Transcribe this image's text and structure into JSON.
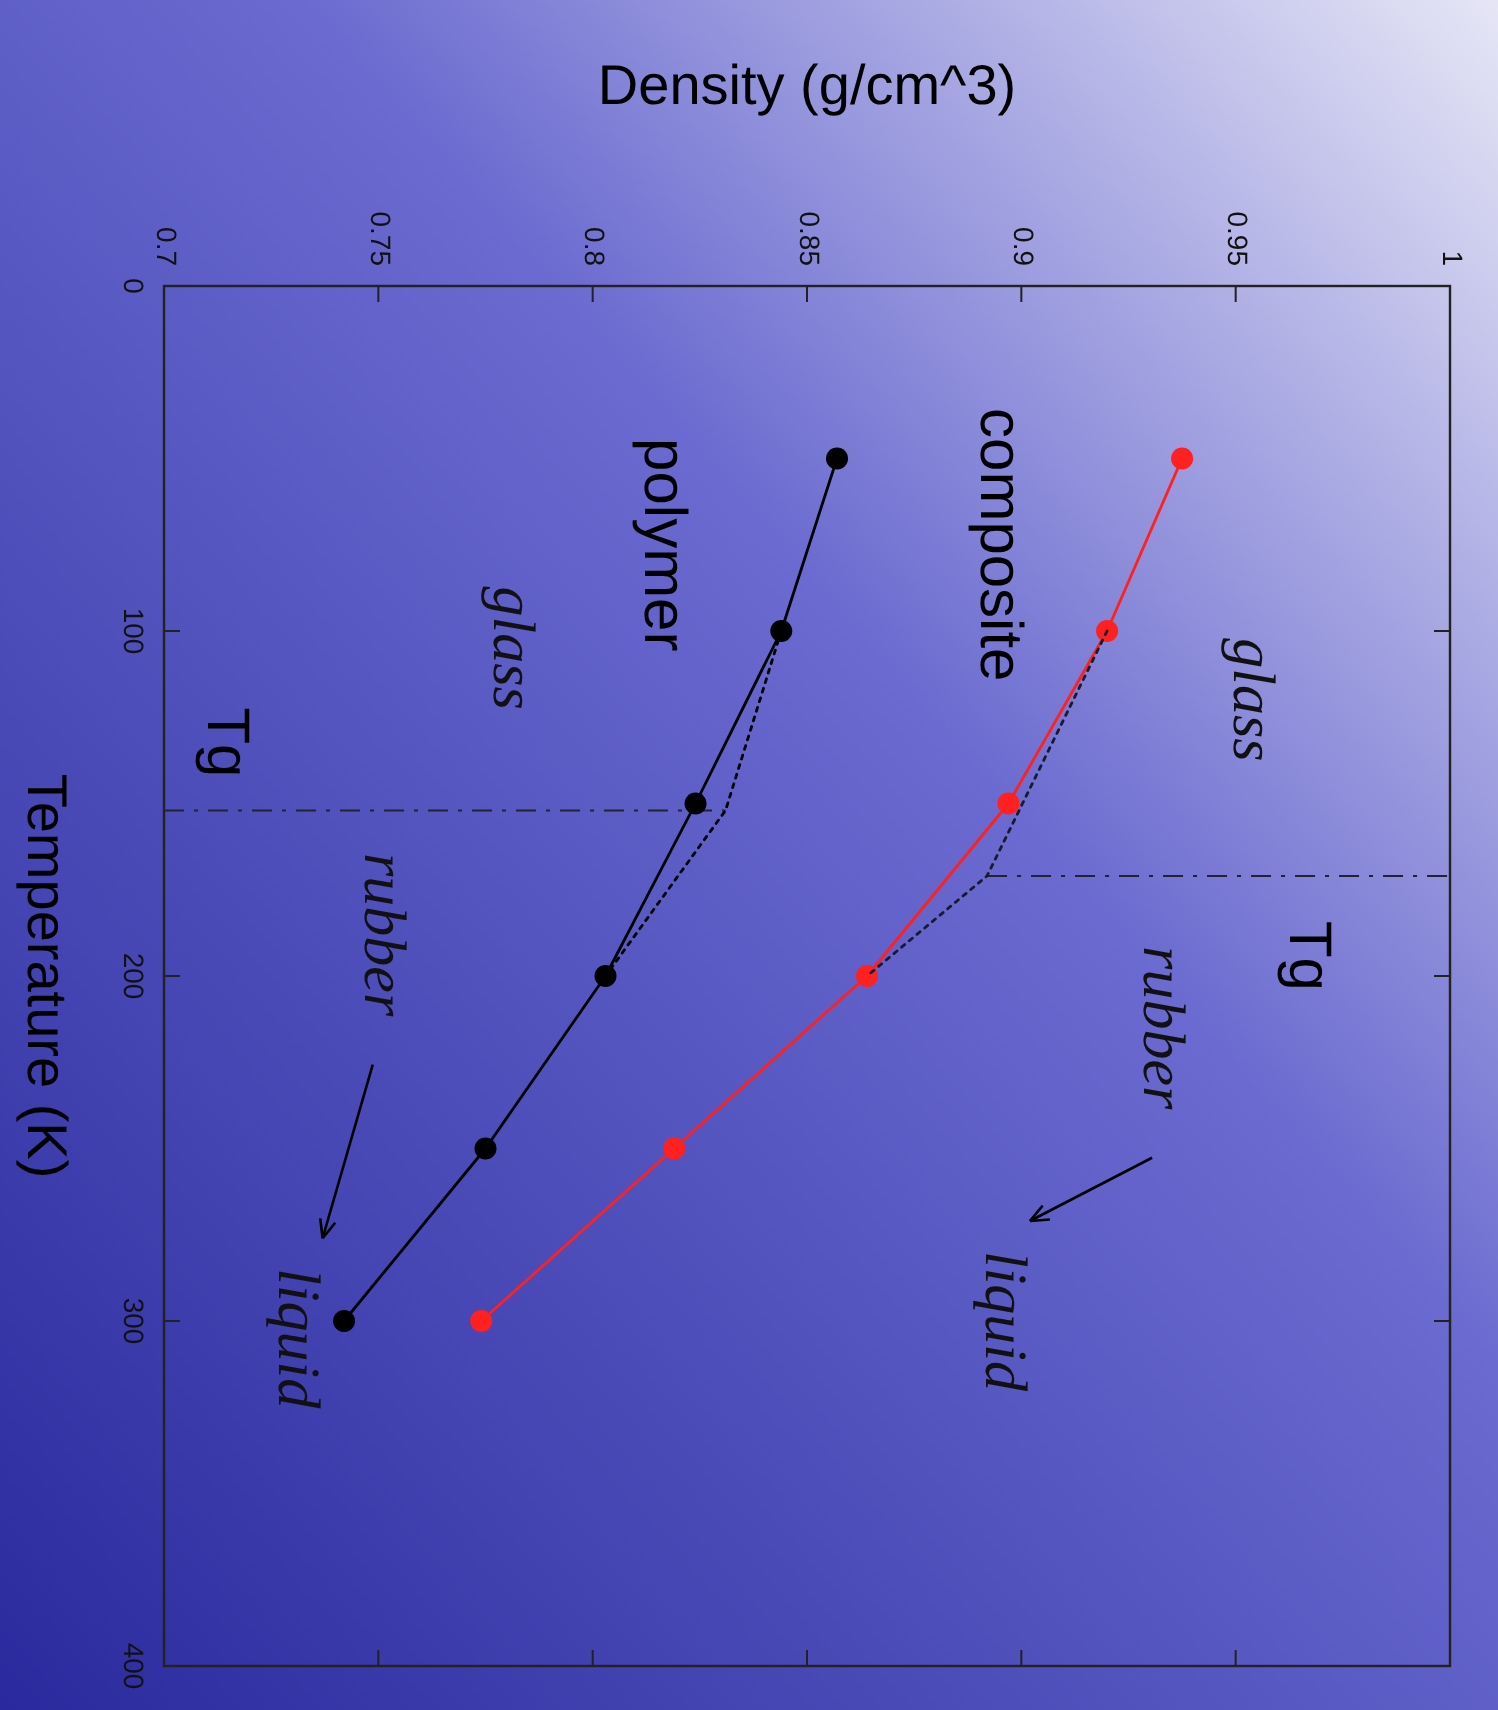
{
  "chart_data": {
    "type": "line",
    "xlabel": "Density (g/cm^3)",
    "ylabel": "Temperature (K)",
    "xlim": [
      0.7,
      1
    ],
    "xticks": [
      0.7,
      0.75,
      0.8,
      0.85,
      0.9,
      0.95,
      1
    ],
    "ylim": [
      400,
      0
    ],
    "yticks": [
      0,
      100,
      200,
      300,
      400
    ],
    "marker": "circle",
    "grid": false,
    "series": [
      {
        "name": "composite",
        "color": "#ff2020",
        "x": [
          0.9375,
          0.92,
          0.897,
          0.864,
          0.819,
          0.774
        ],
        "values": [
          50,
          100,
          150,
          200,
          250,
          300
        ]
      },
      {
        "name": "polymer",
        "color": "#000000",
        "x": [
          0.857,
          0.844,
          0.824,
          0.803,
          0.775,
          0.742
        ],
        "values": [
          50,
          100,
          150,
          200,
          250,
          300
        ]
      },
      {
        "type": "line",
        "color": "#1a1a2e",
        "x": [
          0.92,
          0.892,
          0.864
        ],
        "values": [
          100,
          171,
          200
        ],
        "marker": "none",
        "line_style": "dotted"
      },
      {
        "type": "line",
        "color": "#000000",
        "x": [
          0.844,
          0.831,
          0.803
        ],
        "values": [
          100,
          152,
          200
        ],
        "marker": "none",
        "line_style": "dotted"
      }
    ],
    "ref_lines": [
      {
        "axis": "y",
        "value": 171,
        "label": "Tg",
        "color": "#222233",
        "line_style": "dashed"
      },
      {
        "axis": "y",
        "value": 152,
        "label": "Tg",
        "color": "#222233",
        "line_style": "dashed"
      }
    ],
    "annotations": [
      "glass",
      "rubber",
      "liquid",
      "glass",
      "rubber",
      "liquid"
    ]
  }
}
